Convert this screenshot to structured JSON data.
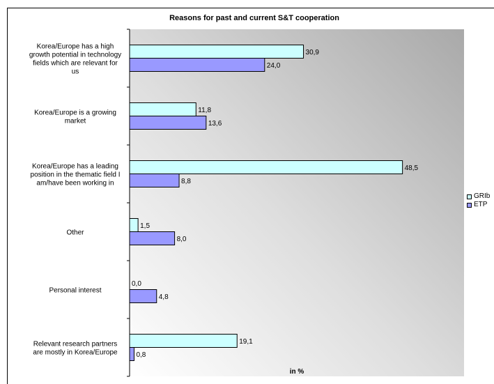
{
  "chart_data": {
    "type": "bar",
    "orientation": "horizontal",
    "title": "Reasons for past and current S&T cooperation",
    "xlabel": "in %",
    "ylabel": "",
    "xlim": [
      0,
      100
    ],
    "grid": false,
    "legend_position": "right",
    "categories": [
      "Korea/Europe has a high growth potential in technology fields which are relevant for us",
      "Korea/Europe is a growing market",
      "Korea/Europe has a leading position in the thematic field I am/have been working in",
      "Other",
      "Personal interest",
      "Relevant research partners are mostly in Korea/Europe"
    ],
    "category_lines": [
      [
        "Korea/Europe has a high",
        "growth potential in technology",
        "fields which are relevant for",
        "us"
      ],
      [
        "Korea/Europe is a growing",
        "market"
      ],
      [
        "Korea/Europe has a leading",
        "position in the thematic field I",
        "am/have been working in"
      ],
      [
        "Other"
      ],
      [
        "Personal interest"
      ],
      [
        "Relevant research partners",
        "are mostly in Korea/Europe"
      ]
    ],
    "series": [
      {
        "name": "GRIb",
        "color": "#ccffff",
        "values": [
          30.9,
          11.8,
          48.5,
          1.5,
          0.0,
          19.1
        ],
        "labels": [
          "30,9",
          "11,8",
          "48,5",
          "1,5",
          "0,0",
          "19,1"
        ]
      },
      {
        "name": "ETP",
        "color": "#9999ff",
        "values": [
          24.0,
          13.6,
          8.8,
          8.0,
          4.8,
          0.8
        ],
        "labels": [
          "24,0",
          "13,6",
          "8,8",
          "8,0",
          "4,8",
          "0,8"
        ]
      }
    ]
  }
}
